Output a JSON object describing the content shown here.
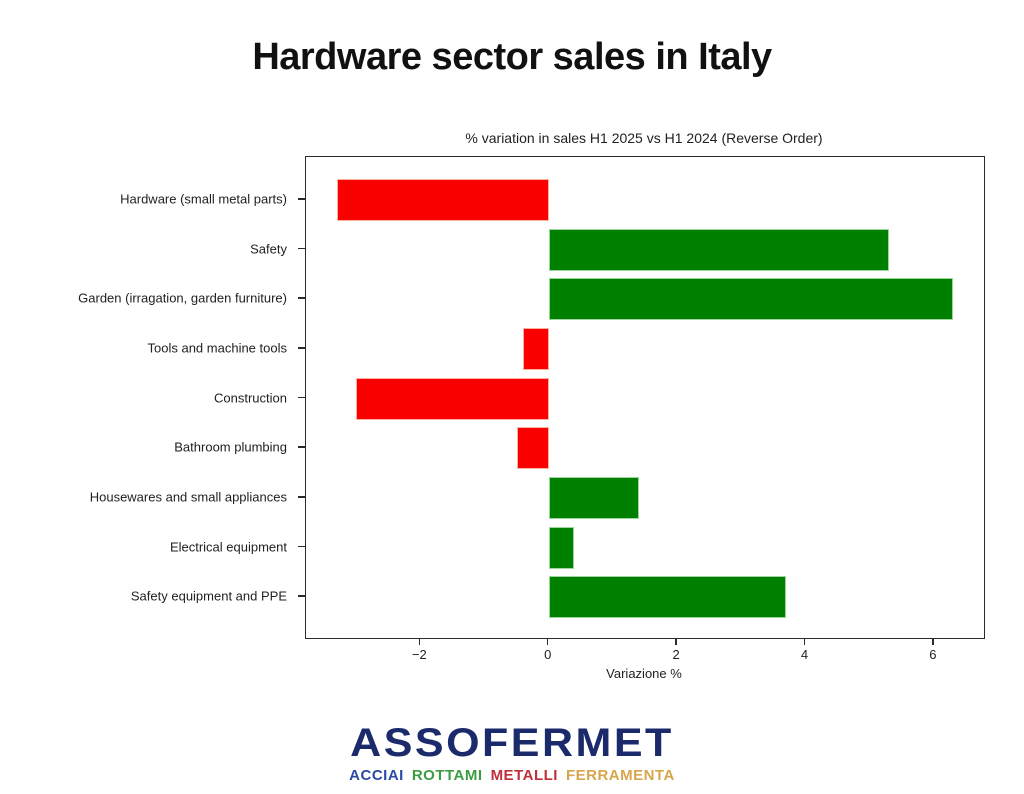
{
  "title": "Hardware sector sales in Italy",
  "chart_data": {
    "type": "bar",
    "orientation": "horizontal",
    "title": "% variation in sales H1 2025 vs H1 2024 (Reverse Order)",
    "categories": [
      "Hardware (small metal parts)",
      "Safety",
      "Garden (irragation, garden furniture)",
      "Tools and machine tools",
      "Construction",
      "Bathroom plumbing",
      "Housewares and small appliances",
      "Electrical equipment",
      "Safety equipment and PPE"
    ],
    "values": [
      -3.3,
      5.3,
      6.3,
      -0.4,
      -3.0,
      -0.5,
      1.4,
      0.4,
      3.7
    ],
    "xlabel": "Variazione %",
    "xlim": [
      -3.78,
      6.78
    ],
    "xticks": [
      -2,
      0,
      2,
      4,
      6
    ],
    "grid": false,
    "legend": "none",
    "positive_color": "#008000",
    "negative_color": "#fb0000",
    "positive_edge": "#9ed69e",
    "negative_edge": "#ffb0a0"
  },
  "footer_logo": {
    "name": "ASSOFERMET",
    "name_color": "#1b2a6b",
    "words": [
      {
        "label": "ACCIAI",
        "color": "#2a4aa5"
      },
      {
        "label": "ROTTAMI",
        "color": "#3d9b43"
      },
      {
        "label": "METALLI",
        "color": "#bf2f3c"
      },
      {
        "label": "FERRAMENTA",
        "color": "#d7a54b"
      }
    ]
  }
}
